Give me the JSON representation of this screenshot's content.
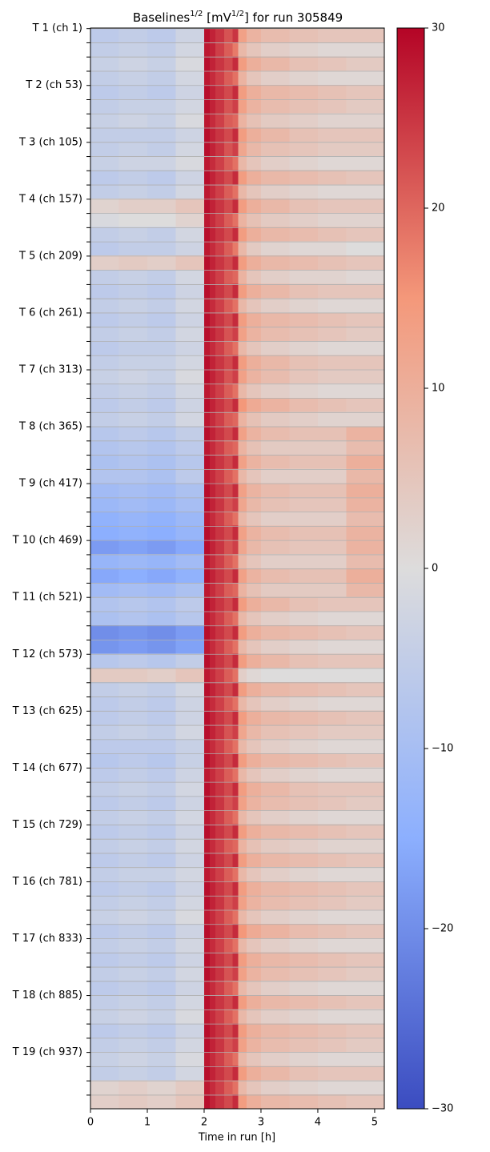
{
  "chart_data": {
    "type": "heatmap",
    "title": [
      {
        "text": "Baselines"
      },
      {
        "text": "1/2",
        "sup": true
      },
      {
        "text": " [mV"
      },
      {
        "text": "1/2",
        "sup": true
      },
      {
        "text": "] for run 305849"
      }
    ],
    "xlabel": "Time in run [h]",
    "xlim": [
      0,
      5.17
    ],
    "xticks": [
      0,
      1,
      2,
      3,
      4,
      5
    ],
    "ylim": [
      0.5,
      988.5
    ],
    "yticks": [
      {
        "value": 1,
        "label": "T 1 (ch 1)"
      },
      {
        "value": 53,
        "label": "T 2 (ch 53)"
      },
      {
        "value": 105,
        "label": "T 3 (ch 105)"
      },
      {
        "value": 157,
        "label": "T 4 (ch 157)"
      },
      {
        "value": 209,
        "label": "T 5 (ch 209)"
      },
      {
        "value": 261,
        "label": "T 6 (ch 261)"
      },
      {
        "value": 313,
        "label": "T 7 (ch 313)"
      },
      {
        "value": 365,
        "label": "T 8 (ch 365)"
      },
      {
        "value": 417,
        "label": "T 9 (ch 417)"
      },
      {
        "value": 469,
        "label": "T 10 (ch 469)"
      },
      {
        "value": 521,
        "label": "T 11 (ch 521)"
      },
      {
        "value": 573,
        "label": "T 12 (ch 573)"
      },
      {
        "value": 625,
        "label": "T 13 (ch 625)"
      },
      {
        "value": 677,
        "label": "T 14 (ch 677)"
      },
      {
        "value": 729,
        "label": "T 15 (ch 729)"
      },
      {
        "value": 781,
        "label": "T 16 (ch 781)"
      },
      {
        "value": 833,
        "label": "T 17 (ch 833)"
      },
      {
        "value": 885,
        "label": "T 18 (ch 885)"
      },
      {
        "value": 937,
        "label": "T 19 (ch 937)"
      }
    ],
    "yminorticks": [
      14,
      27,
      40,
      66,
      79,
      92,
      118,
      131,
      144,
      170,
      183,
      196,
      222,
      235,
      248,
      274,
      287,
      300,
      326,
      339,
      352,
      378,
      391,
      404,
      430,
      443,
      456,
      482,
      495,
      508,
      534,
      547,
      560,
      586,
      599,
      612,
      638,
      651,
      664,
      690,
      703,
      716,
      742,
      755,
      768,
      794,
      807,
      820,
      846,
      859,
      872,
      898,
      911,
      924,
      950,
      963,
      976
    ],
    "grid": true,
    "colormap": [
      "#3b4cc0",
      "#8caffe",
      "#dddcdc",
      "#f4987a",
      "#b40426"
    ],
    "clim": [
      -30,
      30
    ],
    "cbticks": [
      {
        "value": -30,
        "label": "−30"
      },
      {
        "value": -20,
        "label": "−20"
      },
      {
        "value": -10,
        "label": "−10"
      },
      0,
      10,
      20,
      30
    ],
    "xedges": [
      0,
      0.5,
      1,
      1.5,
      2,
      2.1,
      2.2,
      2.35,
      2.5,
      2.6,
      2.75,
      3,
      3.5,
      4,
      4.5,
      5.17
    ],
    "z": [
      [
        -6,
        -5,
        -6,
        -3,
        29,
        27,
        25,
        22,
        25,
        13,
        9,
        7,
        6,
        5,
        5
      ],
      [
        -5,
        -4,
        -5,
        -2,
        28,
        27,
        24,
        21,
        18,
        8,
        5,
        3,
        2,
        1,
        1
      ],
      [
        -4,
        -3,
        -4,
        -1,
        29,
        27,
        25,
        23,
        26,
        14,
        10,
        8,
        6,
        5,
        4
      ],
      [
        -5,
        -4,
        -5,
        -2,
        28,
        26,
        24,
        21,
        19,
        9,
        5,
        3,
        2,
        1,
        1
      ],
      [
        -6,
        -5,
        -6,
        -3,
        29,
        27,
        25,
        23,
        26,
        14,
        10,
        8,
        7,
        6,
        5
      ],
      [
        -5,
        -4,
        -4,
        -2,
        29,
        27,
        25,
        22,
        24,
        13,
        9,
        7,
        6,
        5,
        4
      ],
      [
        -4,
        -3,
        -4,
        -1,
        28,
        26,
        24,
        21,
        20,
        9,
        6,
        4,
        3,
        2,
        2
      ],
      [
        -5,
        -5,
        -5,
        -3,
        29,
        27,
        25,
        23,
        26,
        14,
        10,
        8,
        6,
        5,
        5
      ],
      [
        -5,
        -4,
        -5,
        -2,
        29,
        27,
        25,
        22,
        24,
        12,
        8,
        6,
        5,
        4,
        4
      ],
      [
        -4,
        -3,
        -3,
        -1,
        28,
        26,
        24,
        21,
        19,
        8,
        5,
        3,
        2,
        1,
        1
      ],
      [
        -6,
        -5,
        -6,
        -3,
        29,
        27,
        25,
        23,
        26,
        14,
        10,
        8,
        7,
        6,
        5
      ],
      [
        -5,
        -4,
        -5,
        -2,
        28,
        26,
        24,
        21,
        19,
        8,
        5,
        3,
        2,
        1,
        1
      ],
      [
        2,
        3,
        3,
        5,
        29,
        27,
        25,
        23,
        26,
        14,
        10,
        8,
        6,
        5,
        5
      ],
      [
        -1,
        0,
        0,
        2,
        28,
        26,
        24,
        21,
        19,
        9,
        6,
        4,
        3,
        2,
        2
      ],
      [
        -5,
        -4,
        -5,
        -2,
        29,
        27,
        25,
        23,
        26,
        14,
        10,
        8,
        7,
        6,
        5
      ],
      [
        -6,
        -5,
        -5,
        -3,
        28,
        26,
        24,
        21,
        18,
        8,
        4,
        2,
        1,
        1,
        0
      ],
      [
        3,
        4,
        3,
        5,
        29,
        27,
        25,
        23,
        26,
        14,
        10,
        8,
        7,
        6,
        5
      ],
      [
        -5,
        -4,
        -5,
        -2,
        28,
        26,
        24,
        21,
        20,
        9,
        5,
        3,
        2,
        2,
        1
      ],
      [
        -6,
        -5,
        -6,
        -3,
        29,
        27,
        25,
        23,
        26,
        14,
        10,
        8,
        6,
        5,
        5
      ],
      [
        -5,
        -4,
        -5,
        -2,
        28,
        26,
        24,
        21,
        19,
        8,
        5,
        3,
        2,
        1,
        1
      ],
      [
        -6,
        -5,
        -6,
        -3,
        29,
        27,
        25,
        23,
        26,
        14,
        10,
        8,
        7,
        6,
        5
      ],
      [
        -5,
        -4,
        -5,
        -2,
        29,
        27,
        25,
        22,
        24,
        13,
        9,
        7,
        6,
        5,
        4
      ],
      [
        -6,
        -5,
        -5,
        -3,
        28,
        26,
        24,
        21,
        19,
        8,
        5,
        3,
        2,
        1,
        1
      ],
      [
        -5,
        -4,
        -4,
        -2,
        29,
        27,
        25,
        23,
        26,
        14,
        10,
        8,
        6,
        5,
        5
      ],
      [
        -4,
        -3,
        -4,
        -1,
        29,
        27,
        25,
        22,
        24,
        13,
        9,
        7,
        5,
        4,
        4
      ],
      [
        -5,
        -4,
        -5,
        -2,
        28,
        26,
        24,
        21,
        19,
        8,
        5,
        3,
        2,
        1,
        1
      ],
      [
        -6,
        -5,
        -6,
        -3,
        29,
        27,
        25,
        23,
        26,
        15,
        11,
        9,
        7,
        6,
        5
      ],
      [
        -5,
        -4,
        -5,
        -2,
        28,
        26,
        24,
        21,
        20,
        9,
        6,
        4,
        3,
        2,
        2
      ],
      [
        -7,
        -6,
        -7,
        -5,
        29,
        27,
        25,
        23,
        26,
        13,
        9,
        7,
        6,
        6,
        9
      ],
      [
        -8,
        -7,
        -8,
        -6,
        28,
        26,
        24,
        21,
        20,
        9,
        6,
        4,
        4,
        4,
        7
      ],
      [
        -9,
        -8,
        -9,
        -7,
        29,
        27,
        25,
        23,
        26,
        13,
        9,
        7,
        6,
        6,
        10
      ],
      [
        -8,
        -8,
        -9,
        -6,
        28,
        26,
        24,
        21,
        19,
        8,
        5,
        3,
        3,
        3,
        8
      ],
      [
        -11,
        -10,
        -11,
        -9,
        29,
        27,
        25,
        23,
        26,
        13,
        9,
        7,
        6,
        6,
        10
      ],
      [
        -12,
        -11,
        -12,
        -10,
        29,
        27,
        25,
        22,
        24,
        12,
        8,
        6,
        5,
        5,
        9
      ],
      [
        -14,
        -13,
        -14,
        -12,
        28,
        26,
        24,
        21,
        19,
        8,
        5,
        3,
        3,
        3,
        7
      ],
      [
        -15,
        -14,
        -15,
        -13,
        29,
        27,
        25,
        23,
        26,
        13,
        9,
        7,
        6,
        6,
        9
      ],
      [
        -18,
        -17,
        -18,
        -16,
        29,
        27,
        25,
        22,
        24,
        12,
        8,
        6,
        5,
        5,
        9
      ],
      [
        -13,
        -12,
        -13,
        -11,
        28,
        26,
        24,
        21,
        19,
        8,
        5,
        3,
        3,
        3,
        7
      ],
      [
        -16,
        -15,
        -16,
        -14,
        29,
        27,
        25,
        23,
        26,
        13,
        9,
        7,
        6,
        6,
        10
      ],
      [
        -11,
        -10,
        -11,
        -9,
        28,
        26,
        24,
        21,
        20,
        9,
        6,
        4,
        4,
        4,
        8
      ],
      [
        -8,
        -7,
        -8,
        -6,
        29,
        27,
        25,
        23,
        26,
        14,
        10,
        8,
        6,
        5,
        5
      ],
      [
        -9,
        -8,
        -9,
        -7,
        28,
        26,
        24,
        21,
        19,
        8,
        5,
        3,
        2,
        1,
        1
      ],
      [
        -20,
        -19,
        -20,
        -18,
        29,
        27,
        25,
        23,
        26,
        14,
        10,
        8,
        7,
        6,
        5
      ],
      [
        -19,
        -18,
        -19,
        -17,
        28,
        26,
        24,
        21,
        19,
        8,
        5,
        3,
        2,
        1,
        1
      ],
      [
        -7,
        -6,
        -7,
        -5,
        29,
        27,
        25,
        23,
        26,
        14,
        10,
        8,
        6,
        5,
        5
      ],
      [
        4,
        4,
        3,
        5,
        28,
        26,
        24,
        21,
        19,
        3,
        1,
        0,
        0,
        0,
        0
      ],
      [
        -5,
        -4,
        -5,
        -2,
        29,
        27,
        25,
        23,
        26,
        14,
        10,
        8,
        7,
        6,
        5
      ],
      [
        -6,
        -5,
        -6,
        -3,
        28,
        26,
        24,
        21,
        19,
        8,
        5,
        3,
        2,
        1,
        1
      ],
      [
        -6,
        -5,
        -6,
        -3,
        29,
        27,
        25,
        23,
        26,
        14,
        10,
        8,
        7,
        6,
        5
      ],
      [
        -5,
        -4,
        -5,
        -2,
        29,
        27,
        25,
        22,
        24,
        12,
        8,
        6,
        5,
        4,
        4
      ],
      [
        -6,
        -6,
        -6,
        -4,
        28,
        26,
        24,
        21,
        19,
        8,
        5,
        3,
        2,
        1,
        1
      ],
      [
        -7,
        -6,
        -7,
        -4,
        29,
        27,
        25,
        23,
        26,
        14,
        10,
        8,
        7,
        6,
        5
      ],
      [
        -6,
        -5,
        -6,
        -3,
        28,
        26,
        24,
        21,
        19,
        8,
        5,
        3,
        2,
        1,
        1
      ],
      [
        -5,
        -4,
        -5,
        -2,
        29,
        27,
        25,
        23,
        26,
        14,
        10,
        8,
        6,
        5,
        5
      ],
      [
        -6,
        -5,
        -6,
        -3,
        29,
        27,
        25,
        22,
        24,
        13,
        9,
        7,
        6,
        5,
        4
      ],
      [
        -5,
        -4,
        -5,
        -2,
        28,
        26,
        24,
        21,
        19,
        8,
        5,
        3,
        2,
        1,
        1
      ],
      [
        -6,
        -5,
        -6,
        -3,
        29,
        27,
        25,
        23,
        26,
        14,
        10,
        8,
        7,
        6,
        5
      ],
      [
        -5,
        -4,
        -5,
        -2,
        28,
        26,
        24,
        21,
        20,
        9,
        6,
        4,
        3,
        2,
        2
      ],
      [
        -6,
        -5,
        -6,
        -3,
        29,
        27,
        25,
        23,
        26,
        14,
        10,
        8,
        7,
        6,
        5
      ],
      [
        -5,
        -4,
        -4,
        -2,
        28,
        26,
        24,
        21,
        19,
        8,
        5,
        3,
        2,
        1,
        1
      ],
      [
        -6,
        -5,
        -6,
        -3,
        29,
        27,
        25,
        23,
        26,
        14,
        10,
        8,
        7,
        6,
        5
      ],
      [
        -5,
        -4,
        -5,
        -2,
        29,
        27,
        25,
        22,
        24,
        13,
        9,
        7,
        6,
        5,
        4
      ],
      [
        -4,
        -3,
        -4,
        -1,
        28,
        26,
        24,
        21,
        19,
        8,
        5,
        3,
        2,
        1,
        1
      ],
      [
        -6,
        -5,
        -6,
        -3,
        29,
        27,
        25,
        23,
        26,
        15,
        11,
        9,
        7,
        6,
        5
      ],
      [
        -5,
        -4,
        -5,
        -2,
        28,
        26,
        24,
        21,
        19,
        8,
        5,
        3,
        2,
        1,
        1
      ],
      [
        -6,
        -5,
        -6,
        -3,
        29,
        27,
        25,
        23,
        26,
        14,
        10,
        8,
        7,
        6,
        5
      ],
      [
        -5,
        -4,
        -5,
        -2,
        29,
        27,
        25,
        22,
        24,
        13,
        9,
        7,
        6,
        5,
        4
      ],
      [
        -6,
        -5,
        -6,
        -3,
        28,
        26,
        24,
        21,
        19,
        8,
        5,
        3,
        2,
        1,
        1
      ],
      [
        -5,
        -4,
        -5,
        -2,
        29,
        27,
        25,
        23,
        26,
        14,
        10,
        8,
        7,
        6,
        5
      ],
      [
        -4,
        -3,
        -4,
        -1,
        28,
        26,
        24,
        21,
        19,
        8,
        5,
        3,
        2,
        1,
        1
      ],
      [
        -6,
        -5,
        -6,
        -3,
        29,
        27,
        25,
        23,
        26,
        14,
        10,
        8,
        7,
        6,
        5
      ],
      [
        -5,
        -4,
        -5,
        -2,
        29,
        27,
        25,
        22,
        24,
        13,
        9,
        7,
        6,
        5,
        4
      ],
      [
        -4,
        -3,
        -4,
        -1,
        28,
        26,
        24,
        21,
        19,
        8,
        5,
        3,
        2,
        1,
        1
      ],
      [
        -5,
        -4,
        -5,
        -2,
        29,
        27,
        25,
        23,
        26,
        14,
        10,
        8,
        6,
        5,
        5
      ],
      [
        2,
        3,
        2,
        4,
        28,
        26,
        24,
        21,
        19,
        8,
        5,
        3,
        2,
        1,
        1
      ],
      [
        3,
        4,
        3,
        5,
        29,
        27,
        25,
        23,
        26,
        14,
        10,
        8,
        7,
        6,
        5
      ]
    ]
  }
}
